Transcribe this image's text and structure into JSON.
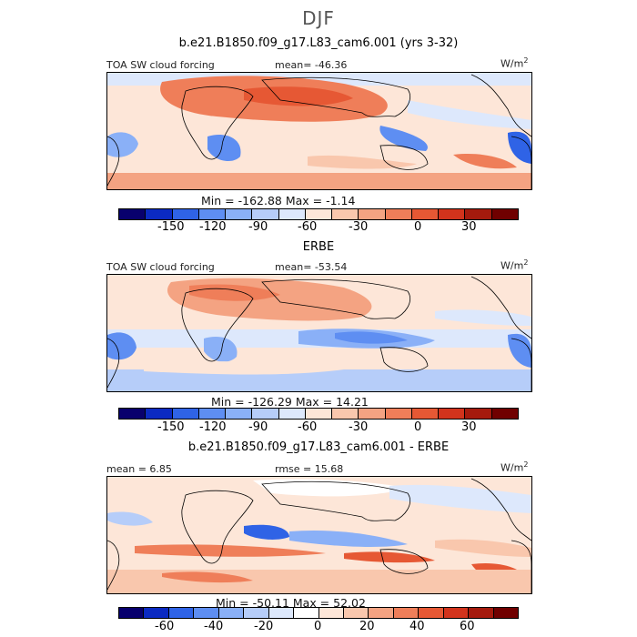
{
  "figure": {
    "season": "DJF",
    "palette_field": [
      "#08006d",
      "#0b2ac2",
      "#2f63e6",
      "#5e8ef2",
      "#8ab0f7",
      "#b6cdf9",
      "#dde8fc",
      "#fde6d8",
      "#f9c7ad",
      "#f4a382",
      "#ef7e59",
      "#e65834",
      "#d2331c",
      "#a51a0d",
      "#700000"
    ],
    "palette_diff": [
      "#08006d",
      "#0b2ac2",
      "#2f63e6",
      "#5e8ef2",
      "#8ab0f7",
      "#b6cdf9",
      "#dde8fc",
      "#ffffff",
      "#fde6d8",
      "#f9c7ad",
      "#f4a382",
      "#ef7e59",
      "#e65834",
      "#d2331c",
      "#a51a0d",
      "#700000"
    ]
  },
  "chart_data": [
    {
      "type": "heatmap",
      "title": "b.e21.B1850.f09_g17.L83_cam6.001 (yrs 3-32)",
      "variable": "TOA SW cloud forcing",
      "mean_label": "mean= -46.36",
      "units": "W/m",
      "units_exp": "2",
      "min": -162.88,
      "max": -1.14,
      "min_max_label": "Min = -162.88 Max =   -1.14",
      "colorbar_ticks": [
        "-150",
        "-120",
        "-90",
        "-60",
        "-30",
        "0",
        "30"
      ],
      "colorbar_levels": [
        -195,
        -180,
        -165,
        -150,
        -135,
        -120,
        -105,
        -90,
        -75,
        -60,
        -45,
        -30,
        -15,
        0,
        15,
        30,
        45
      ]
    },
    {
      "type": "heatmap",
      "title": "ERBE",
      "variable": "TOA SW cloud forcing",
      "mean_label": "mean= -53.54",
      "units": "W/m",
      "units_exp": "2",
      "min": -126.29,
      "max": 14.21,
      "min_max_label": "Min = -126.29 Max =   14.21",
      "colorbar_ticks": [
        "-150",
        "-120",
        "-90",
        "-60",
        "-30",
        "0",
        "30"
      ]
    },
    {
      "type": "heatmap",
      "title": "b.e21.B1850.f09_g17.L83_cam6.001 - ERBE",
      "mean_label": "mean =    6.85",
      "rmse_label": "rmse =  15.68",
      "units": "W/m",
      "units_exp": "2",
      "min": -50.11,
      "max": 52.02,
      "min_max_label": "Min = -50.11 Max =  52.02",
      "colorbar_ticks": [
        "-60",
        "-40",
        "-20",
        "0",
        "20",
        "40",
        "60"
      ]
    }
  ]
}
